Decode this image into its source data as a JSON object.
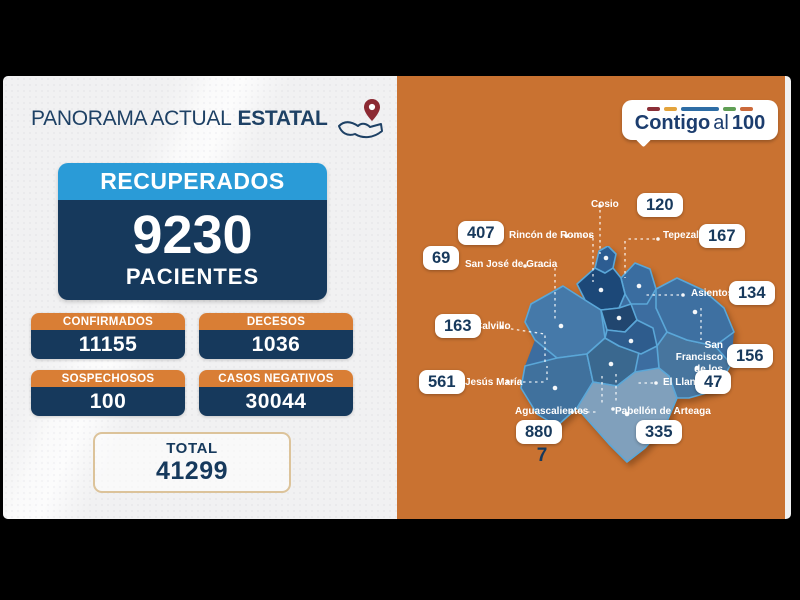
{
  "left_panel": {
    "title": {
      "regular": "PANORAMA ACTUAL",
      "bold": "ESTATAL"
    },
    "recovered": {
      "label": "RECUPERADOS",
      "value": "9230",
      "unit": "PACIENTES"
    },
    "stats": [
      {
        "id": "confirmados",
        "label": "CONFIRMADOS",
        "value": "11155"
      },
      {
        "id": "decesos",
        "label": "DECESOS",
        "value": "1036"
      },
      {
        "id": "sospechosos",
        "label": "SOSPECHOSOS",
        "value": "100"
      },
      {
        "id": "casos-negativos",
        "label": "CASOS NEGATIVOS",
        "value": "30044"
      }
    ],
    "total": {
      "label": "TOTAL",
      "value": "41299"
    }
  },
  "brand": {
    "word1": "Contigo",
    "word2": "al",
    "word3": "100",
    "dash_colors": [
      "#8b2f37",
      "#e3a33c",
      "#2e6da5",
      "#5f9e54",
      "#cb6a3b"
    ],
    "dash_widths": [
      13,
      13,
      38,
      13,
      13
    ]
  },
  "map_panel": {
    "municipalities": [
      {
        "id": "cosio",
        "name": "Cosio",
        "value": 120,
        "display_value": "120"
      },
      {
        "id": "rincon",
        "name": "Rincón de Romos",
        "value": 407,
        "display_value": "407"
      },
      {
        "id": "tepezala",
        "name": "Tepezalá",
        "value": 167,
        "display_value": "167"
      },
      {
        "id": "sanjose",
        "name": "San José de Gracia",
        "value": 69,
        "display_value": "69"
      },
      {
        "id": "asientos",
        "name": "Asientos",
        "value": 134,
        "display_value": "134"
      },
      {
        "id": "calvillo",
        "name": "Calvillo",
        "value": 163,
        "display_value": "163"
      },
      {
        "id": "sfromo",
        "name": "San Francisco de los Romo",
        "value": 156,
        "display_value": "156"
      },
      {
        "id": "jesus",
        "name": "Jesús María",
        "value": 561,
        "display_value": "561"
      },
      {
        "id": "elllano",
        "name": "El Llano",
        "value": 47,
        "display_value": "47"
      },
      {
        "id": "ags",
        "name": "Aguascalientes",
        "value": 8807,
        "display_value": "880",
        "overflow_digit": "7"
      },
      {
        "id": "pabellon",
        "name": "Pabellón de Arteaga",
        "value": 335,
        "display_value": "335"
      }
    ]
  },
  "colors": {
    "panel_orange": "#c97231",
    "navy": "#16395c",
    "recovered_header_blue": "#2a9bd7",
    "stat_header_orange": "#d97e35",
    "total_border_tan": "#dcc39a",
    "pin_red": "#8c2a33",
    "map_border_blue": "#5aa7d8"
  },
  "chart_data": {
    "type": "table",
    "title": "PANORAMA ACTUAL ESTATAL",
    "totals": {
      "recuperados_pacientes": 9230,
      "confirmados": 11155,
      "decesos": 1036,
      "sospechosos": 100,
      "casos_negativos": 30044,
      "total": 41299
    },
    "municipality_values": {
      "Cosio": 120,
      "Rincón de Romos": 407,
      "Tepezalá": 167,
      "San José de Gracia": 69,
      "Asientos": 134,
      "Calvillo": 163,
      "San Francisco de los Romo": 156,
      "Jesús María": 561,
      "El Llano": 47,
      "Aguascalientes": 8807,
      "Pabellón de Arteaga": 335
    }
  }
}
